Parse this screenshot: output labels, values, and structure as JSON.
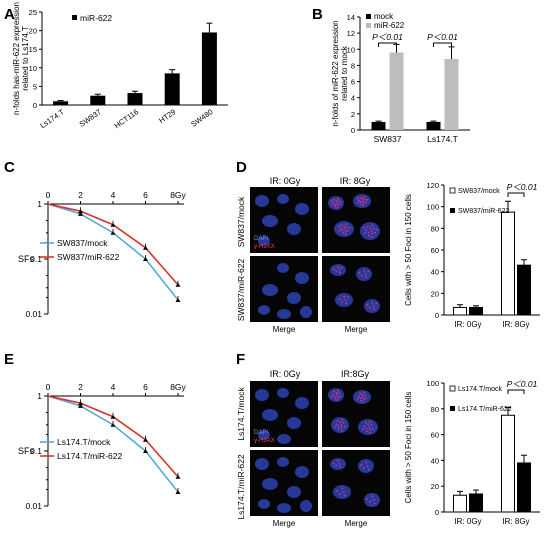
{
  "panels": {
    "A": "A",
    "B": "B",
    "C": "C",
    "D": "D",
    "E": "E",
    "F": "F"
  },
  "colors": {
    "black": "#000000",
    "grey": "#bdbdbd",
    "mock_line": "#5aa9dc",
    "mir_line": "#d6332a",
    "micro_bg": "#050505",
    "nucleus": "#2a3fa8",
    "foci": "#e0308a"
  },
  "micro_D": {
    "col_labels": [
      "IR: 0Gy",
      "IR: 8Gy"
    ],
    "row_labels": [
      "SW837/mock",
      "SW837/miR-622"
    ],
    "stain_dapi": "DAPI",
    "stain_h2ax": "γ-H2AX",
    "merge": "Merge"
  },
  "micro_F": {
    "col_labels": [
      "IR: 0Gy",
      "IR:8Gy"
    ],
    "row_labels": [
      "Ls174.T/mock",
      "Ls174.T/miR-622"
    ],
    "stain_dapi": "DAPI",
    "stain_h2ax": "γ-H2AX",
    "merge": "Merge"
  },
  "chart_data": [
    {
      "id": "A",
      "type": "bar",
      "categories": [
        "Ls174.T",
        "SW837",
        "HCT116",
        "HT29",
        "SW480"
      ],
      "series": [
        {
          "name": "miR-622",
          "values": [
            1,
            2.5,
            3.2,
            8.5,
            19.5
          ],
          "errors": [
            0.2,
            0.4,
            0.5,
            1.0,
            2.5
          ]
        }
      ],
      "ylabel": "n-folds has-miR-622 expression related to Ls174.T",
      "ylim": [
        0,
        25
      ],
      "yticks": [
        0,
        5,
        10,
        15,
        20,
        25
      ],
      "legend": "top-left"
    },
    {
      "id": "B",
      "type": "bar",
      "categories": [
        "SW837",
        "Ls174.T"
      ],
      "series": [
        {
          "name": "mock",
          "values": [
            1,
            1
          ],
          "errors": [
            0.1,
            0.1
          ]
        },
        {
          "name": "miR-622",
          "values": [
            9.6,
            8.8
          ],
          "errors": [
            1.0,
            1.5
          ]
        }
      ],
      "ylabel": "n-folds of miR-622 expression related to mock",
      "ylim": [
        0,
        14
      ],
      "yticks": [
        0,
        2,
        4,
        6,
        8,
        10,
        12,
        14
      ],
      "annotations": [
        "P＜0.01",
        "P＜0.01"
      ],
      "legend": "top-left"
    },
    {
      "id": "C",
      "type": "line",
      "x": [
        0,
        2,
        4,
        6,
        8
      ],
      "xticks": [
        "0",
        "2",
        "4",
        "6",
        "8Gy"
      ],
      "series": [
        {
          "name": "SW837/mock",
          "values": [
            1,
            0.66,
            0.3,
            0.1,
            0.018
          ]
        },
        {
          "name": "SW837/miR-622",
          "values": [
            1,
            0.74,
            0.42,
            0.16,
            0.034
          ]
        }
      ],
      "ylabel": "SFs",
      "ylim": [
        0.01,
        1
      ],
      "yticks": [
        "1",
        "0.1",
        "0.01"
      ],
      "yscale": "log",
      "legend": "center-left"
    },
    {
      "id": "D",
      "type": "bar",
      "categories": [
        "IR: 0Gy",
        "IR: 8Gy"
      ],
      "series": [
        {
          "name": "SW837/mock",
          "values": [
            7,
            95
          ],
          "errors": [
            2.5,
            10
          ]
        },
        {
          "name": "SW837/miR-622",
          "values": [
            7,
            46
          ],
          "errors": [
            1.5,
            5
          ]
        }
      ],
      "ylabel": "Cells with > 50 Foci in 150 cells",
      "ylim": [
        0,
        120
      ],
      "yticks": [
        0,
        20,
        40,
        60,
        80,
        100,
        120
      ],
      "annotations": [
        "P＜0.01"
      ],
      "legend": "top-left"
    },
    {
      "id": "E",
      "type": "line",
      "x": [
        0,
        2,
        4,
        6,
        8
      ],
      "xticks": [
        "0",
        "2",
        "4",
        "6",
        "8Gy"
      ],
      "series": [
        {
          "name": "Ls174.T/mock",
          "values": [
            1,
            0.66,
            0.3,
            0.1,
            0.018
          ]
        },
        {
          "name": "Ls174.T/miR-622",
          "values": [
            1,
            0.74,
            0.42,
            0.16,
            0.034
          ]
        }
      ],
      "ylabel": "SFs",
      "ylim": [
        0.01,
        1
      ],
      "yticks": [
        "1",
        "0.1",
        "0.01"
      ],
      "yscale": "log",
      "legend": "center-left"
    },
    {
      "id": "F",
      "type": "bar",
      "categories": [
        "IR: 0Gy",
        "IR: 8Gy"
      ],
      "series": [
        {
          "name": "Ls174.T/mock",
          "values": [
            13,
            75
          ],
          "errors": [
            3,
            6
          ]
        },
        {
          "name": "Ls174.T/miR-622",
          "values": [
            14,
            38
          ],
          "errors": [
            3,
            6
          ]
        }
      ],
      "ylabel": "Cells with > 50 Foci in 150 cells",
      "ylim": [
        0,
        100
      ],
      "yticks": [
        0,
        20,
        40,
        60,
        80,
        100
      ],
      "annotations": [
        "P＜0.01"
      ],
      "legend": "top-left"
    }
  ]
}
